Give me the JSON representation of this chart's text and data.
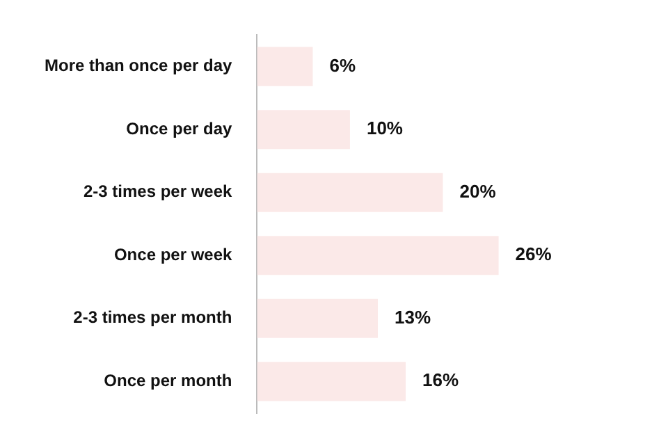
{
  "chart_data": {
    "type": "bar",
    "orientation": "horizontal",
    "categories": [
      "More than once per day",
      "Once per day",
      "2-3 times per week",
      "Once per week",
      "2-3 times per month",
      "Once per month"
    ],
    "values": [
      6,
      10,
      20,
      26,
      13,
      16
    ],
    "value_labels": [
      "6%",
      "10%",
      "20%",
      "26%",
      "13%",
      "16%"
    ],
    "color": "#fbe9e8",
    "legend": false
  }
}
